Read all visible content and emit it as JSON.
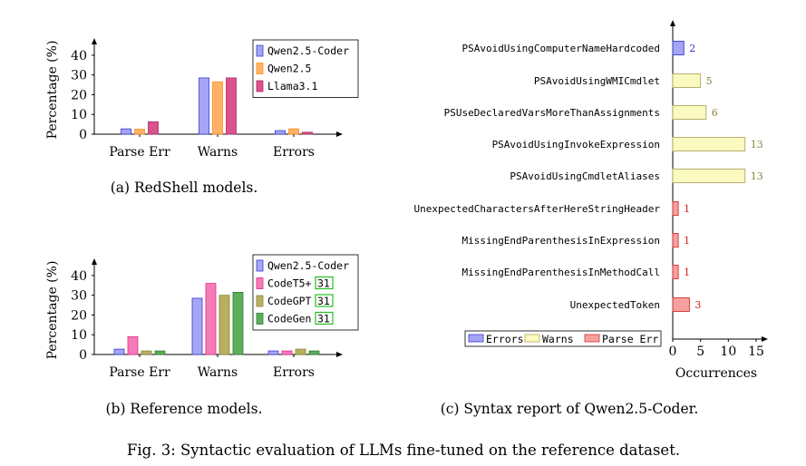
{
  "figure_caption": "Fig. 3: Syntactic evaluation of LLMs fine-tuned on the reference dataset.",
  "colors": {
    "Qwen2.5-Coder": {
      "fill": "#a5a5f5",
      "stroke": "#3a3ad0"
    },
    "Qwen2.5": {
      "fill": "#ffb266",
      "stroke": "#ff8c1a"
    },
    "Llama3.1": {
      "fill": "#d9538c",
      "stroke": "#b02a63"
    },
    "CodeT5+": {
      "fill": "#f57ab8",
      "stroke": "#d62f86"
    },
    "CodeGPT": {
      "fill": "#b8b060",
      "stroke": "#8c8430"
    },
    "CodeGen": {
      "fill": "#5cad5c",
      "stroke": "#2e7d32"
    },
    "Errors": {
      "fill": "#a5a5f5",
      "stroke": "#3a3ad0",
      "text": "#3030c0"
    },
    "Warns": {
      "fill": "#fafac0",
      "stroke": "#b0a860",
      "text": "#8c8440"
    },
    "Parse Err": {
      "fill": "#f5a0a0",
      "stroke": "#d03030",
      "text": "#d02020"
    },
    "citation_box": "#22c022"
  },
  "chart_data": [
    {
      "id": "a",
      "type": "bar",
      "caption": "(a) RedShell models.",
      "ylabel": "Percentage (%)",
      "xlabel": "",
      "categories": [
        "Parse Err",
        "Warns",
        "Errors"
      ],
      "yticks": [
        0,
        10,
        20,
        30,
        40
      ],
      "ylim": [
        0,
        45
      ],
      "grid": false,
      "legend_position": "top-right",
      "series": [
        {
          "name": "Qwen2.5-Coder",
          "values": [
            2.7,
            28.5,
            1.8
          ]
        },
        {
          "name": "Qwen2.5",
          "values": [
            2.5,
            26.5,
            2.7
          ]
        },
        {
          "name": "Llama3.1",
          "values": [
            6.3,
            28.5,
            1.0
          ]
        }
      ]
    },
    {
      "id": "b",
      "type": "bar",
      "caption": "(b) Reference models.",
      "ylabel": "Percentage (%)",
      "xlabel": "",
      "categories": [
        "Parse Err",
        "Warns",
        "Errors"
      ],
      "yticks": [
        0,
        10,
        20,
        30,
        40
      ],
      "ylim": [
        0,
        45
      ],
      "grid": false,
      "legend_position": "top-right",
      "series": [
        {
          "name": "Qwen2.5-Coder",
          "values": [
            2.7,
            28.5,
            1.8
          ]
        },
        {
          "name": "CodeT5+",
          "cite": "31",
          "values": [
            9.0,
            36.0,
            1.8
          ]
        },
        {
          "name": "CodeGPT",
          "cite": "31",
          "values": [
            1.8,
            30.0,
            2.7
          ]
        },
        {
          "name": "CodeGen",
          "cite": "31",
          "values": [
            1.8,
            31.5,
            1.8
          ]
        }
      ]
    },
    {
      "id": "c",
      "type": "bar",
      "orientation": "horizontal",
      "caption": "(c) Syntax report of Qwen2.5-Coder.",
      "xlabel": "Occurrences",
      "ylabel": "",
      "xticks": [
        0,
        5,
        10,
        15
      ],
      "xlim": [
        0,
        16
      ],
      "grid": false,
      "legend_position": "bottom-left",
      "legend": [
        "Errors",
        "Warns",
        "Parse Err"
      ],
      "bars": [
        {
          "label": "PSAvoidUsingComputerNameHardcoded",
          "value": 2,
          "group": "Errors"
        },
        {
          "label": "PSAvoidUsingWMICmdlet",
          "value": 5,
          "group": "Warns"
        },
        {
          "label": "PSUseDeclaredVarsMoreThanAssignments",
          "value": 6,
          "group": "Warns"
        },
        {
          "label": "PSAvoidUsingInvokeExpression",
          "value": 13,
          "group": "Warns"
        },
        {
          "label": "PSAvoidUsingCmdletAliases",
          "value": 13,
          "group": "Warns"
        },
        {
          "label": "UnexpectedCharactersAfterHereStringHeader",
          "value": 1,
          "group": "Parse Err"
        },
        {
          "label": "MissingEndParenthesisInExpression",
          "value": 1,
          "group": "Parse Err"
        },
        {
          "label": "MissingEndParenthesisInMethodCall",
          "value": 1,
          "group": "Parse Err"
        },
        {
          "label": "UnexpectedToken",
          "value": 3,
          "group": "Parse Err"
        }
      ]
    }
  ]
}
